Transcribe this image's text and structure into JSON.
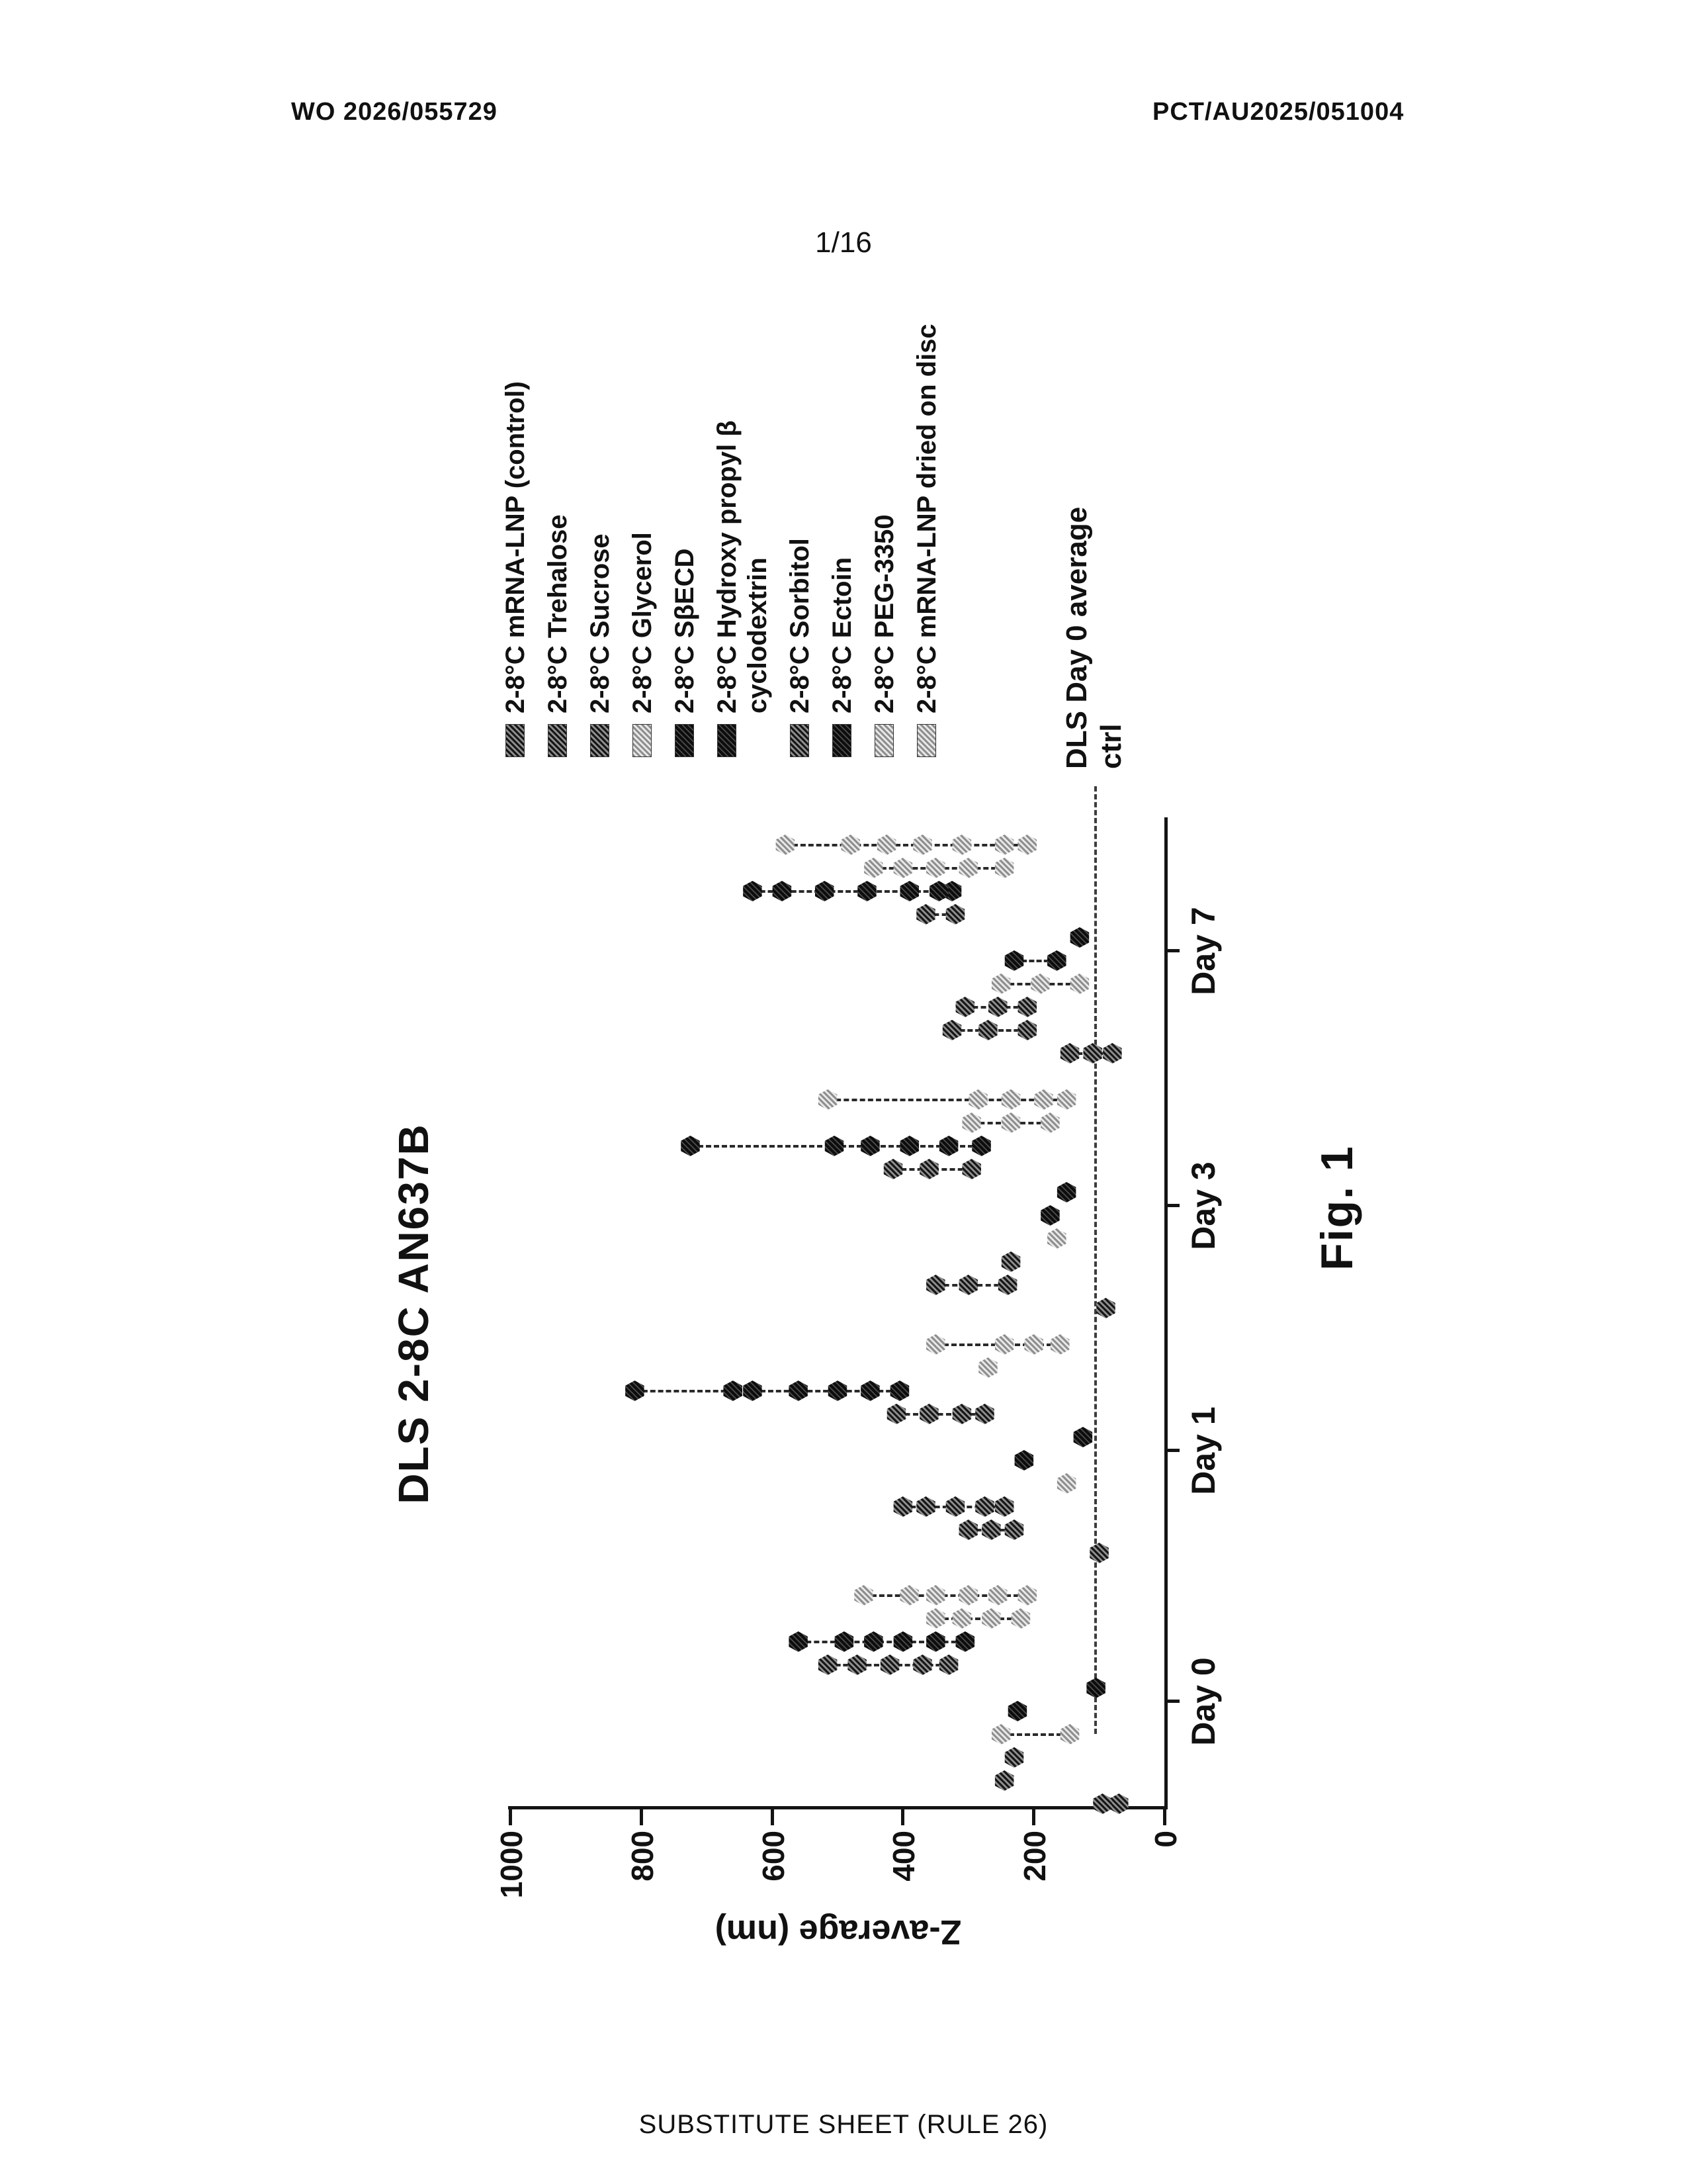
{
  "page": {
    "header_left": "WO 2026/055729",
    "header_right": "PCT/AU2025/051004",
    "page_number": "1/16",
    "footer": "SUBSTITUTE SHEET (RULE 26)",
    "figure_caption": "Fig. 1"
  },
  "chart_data": {
    "type": "scatter",
    "title": "DLS 2-8C AN637B",
    "ylabel": "Z-average (nm)",
    "ylim": [
      0,
      1000
    ],
    "yticks": [
      0,
      200,
      400,
      600,
      800,
      1000
    ],
    "categories": [
      "Day 0",
      "Day 1",
      "Day 3",
      "Day 7"
    ],
    "grid": false,
    "legend_position": "right",
    "orientation": "figure rotated 90 degrees counter-clockwise on page",
    "reference_line": {
      "value": 100,
      "style": "dashed",
      "label": "DLS Day 0 average ctrl"
    },
    "series": [
      {
        "name": "2-8°C mRNA-LNP (control)",
        "shade": "medium",
        "values_nm": [
          [
            70,
            95
          ],
          [
            100
          ],
          [
            90
          ],
          [
            80,
            110,
            145
          ]
        ]
      },
      {
        "name": "2-8°C Trehalose",
        "shade": "medium",
        "values_nm": [
          [
            245
          ],
          [
            230,
            265,
            300
          ],
          [
            240,
            300,
            350
          ],
          [
            210,
            270,
            325
          ]
        ]
      },
      {
        "name": "2-8°C Sucrose",
        "shade": "medium",
        "values_nm": [
          [
            230
          ],
          [
            245,
            275,
            320,
            365,
            400
          ],
          [
            235
          ],
          [
            210,
            255,
            305
          ]
        ]
      },
      {
        "name": "2-8°C Glycerol",
        "shade": "light",
        "values_nm": [
          [
            145,
            250
          ],
          [
            150
          ],
          [
            165
          ],
          [
            130,
            190,
            250
          ]
        ]
      },
      {
        "name": "2-8°C SβECD",
        "shade": "dark",
        "values_nm": [
          [
            225
          ],
          [
            215
          ],
          [
            175
          ],
          [
            165,
            230
          ]
        ]
      },
      {
        "name": "2-8°C Hydroxy propyl β cyclodextrin",
        "shade": "dark",
        "values_nm": [
          [
            105
          ],
          [
            125
          ],
          [
            150
          ],
          [
            130
          ]
        ]
      },
      {
        "name": "2-8°C Sorbitol",
        "shade": "medium",
        "values_nm": [
          [
            330,
            370,
            420,
            470,
            515
          ],
          [
            275,
            310,
            360,
            410
          ],
          [
            295,
            360,
            415
          ],
          [
            320,
            365
          ]
        ]
      },
      {
        "name": "2-8°C Ectoin",
        "shade": "dark",
        "values_nm": [
          [
            305,
            350,
            400,
            445,
            490,
            560
          ],
          [
            405,
            450,
            500,
            560,
            630,
            660,
            810
          ],
          [
            280,
            330,
            390,
            450,
            505,
            725
          ],
          [
            325,
            345,
            390,
            455,
            520,
            585,
            630
          ]
        ]
      },
      {
        "name": "2-8°C PEG-3350",
        "shade": "light",
        "values_nm": [
          [
            220,
            265,
            310,
            350
          ],
          [
            270
          ],
          [
            175,
            235,
            295
          ],
          [
            245,
            300,
            350,
            400,
            445
          ]
        ]
      },
      {
        "name": "2-8°C mRNA-LNP dried on disc",
        "shade": "light",
        "values_nm": [
          [
            210,
            255,
            300,
            350,
            390,
            460
          ],
          [
            160,
            200,
            245,
            350
          ],
          [
            150,
            185,
            235,
            285,
            515
          ],
          [
            210,
            245,
            310,
            370,
            425,
            480,
            580
          ]
        ]
      }
    ]
  }
}
